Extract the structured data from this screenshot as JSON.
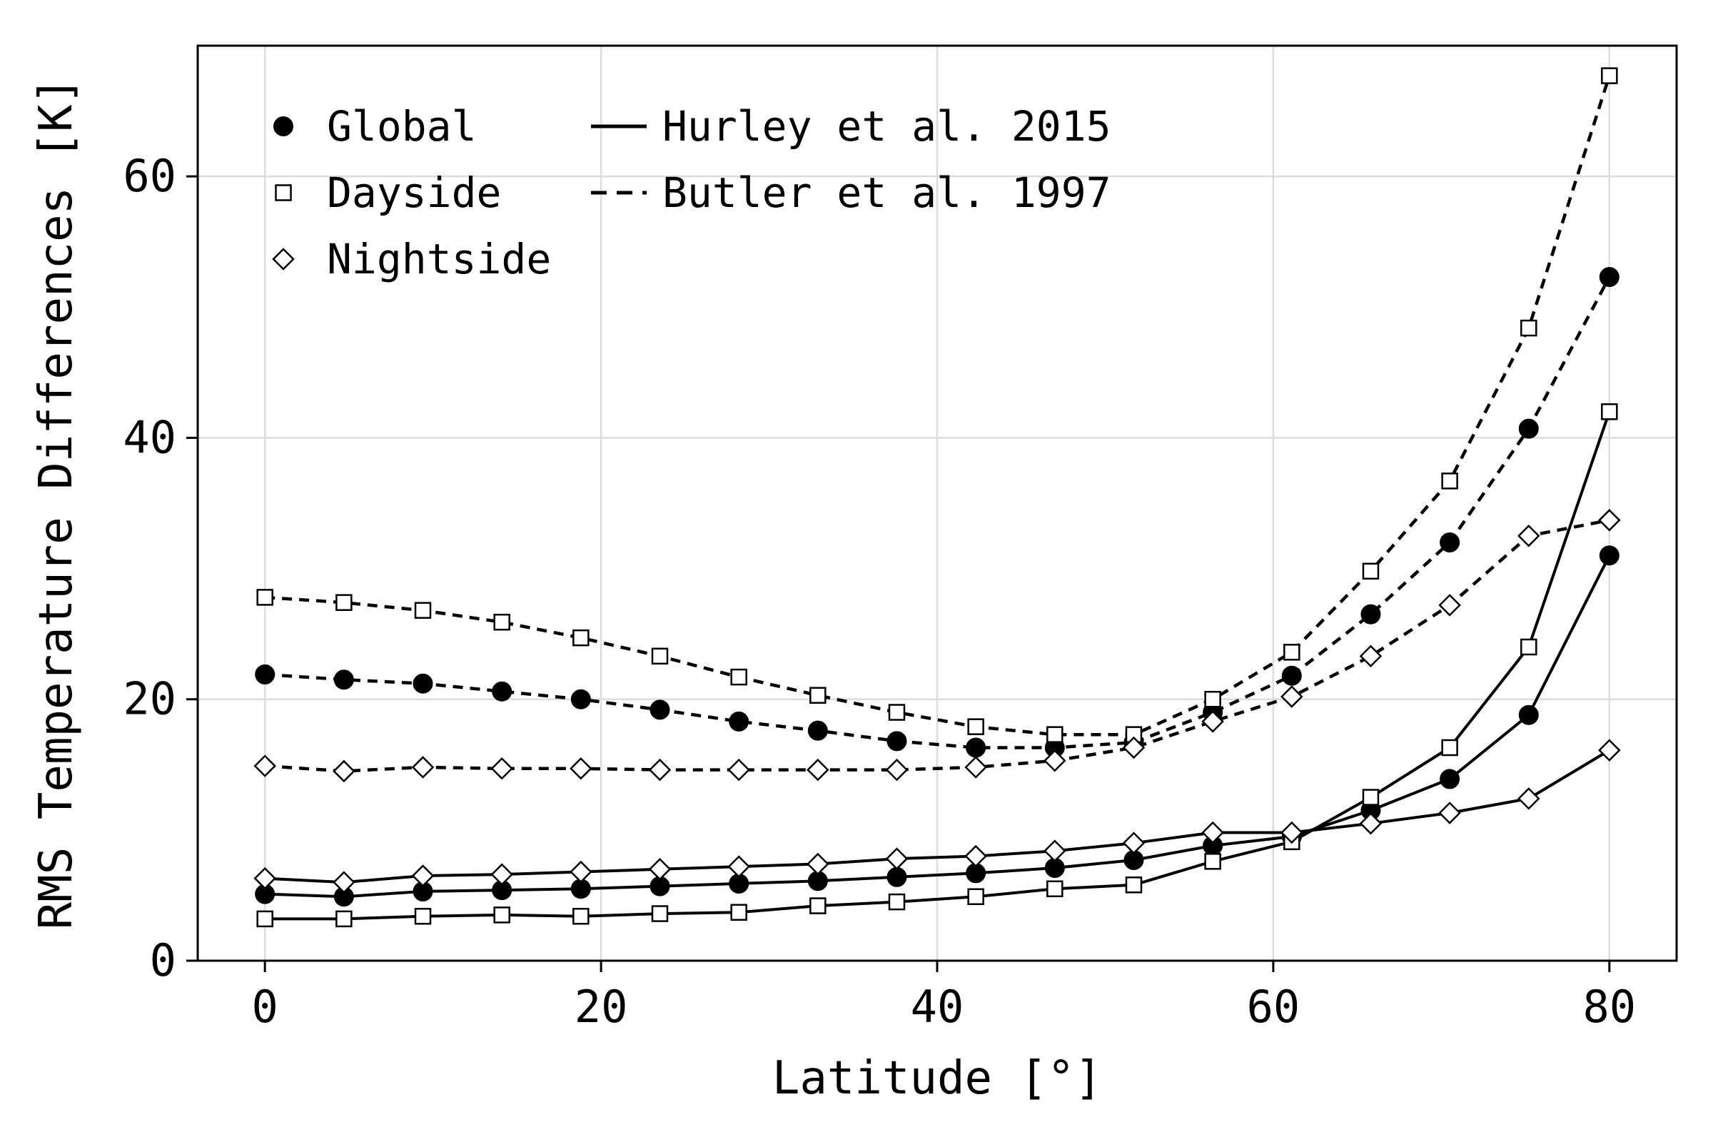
{
  "chart_data": {
    "type": "line",
    "title": "",
    "xlabel": "Latitude [°]",
    "ylabel": "RMS Temperature Differences [K]",
    "xlim": [
      -4,
      84
    ],
    "ylim": [
      0,
      70
    ],
    "xticks": [
      0,
      20,
      40,
      60,
      80
    ],
    "yticks": [
      0,
      20,
      40,
      60
    ],
    "grid": true,
    "legend_position": "top-left",
    "legend_markers": [
      {
        "label": "Global",
        "marker": "filled-circle"
      },
      {
        "label": "Dayside",
        "marker": "open-square"
      },
      {
        "label": "Nightside",
        "marker": "open-diamond"
      }
    ],
    "legend_lines": [
      {
        "label": "Hurley et al. 2015",
        "style": "solid"
      },
      {
        "label": "Butler et al. 1997",
        "style": "dashed"
      }
    ],
    "x": [
      0,
      4.7,
      9.4,
      14.1,
      18.8,
      23.5,
      28.2,
      32.9,
      37.6,
      42.3,
      47.0,
      51.7,
      56.4,
      61.1,
      65.8,
      70.5,
      75.2,
      80
    ],
    "series": [
      {
        "name": "Global",
        "model": "Hurley et al. 2015",
        "marker": "filled-circle",
        "style": "solid",
        "values": [
          5.1,
          4.9,
          5.3,
          5.4,
          5.5,
          5.7,
          5.9,
          6.1,
          6.4,
          6.7,
          7.1,
          7.7,
          8.8,
          9.5,
          11.5,
          13.9,
          18.8,
          31.0
        ]
      },
      {
        "name": "Dayside",
        "model": "Hurley et al. 2015",
        "marker": "open-square",
        "style": "solid",
        "values": [
          3.2,
          3.2,
          3.4,
          3.5,
          3.4,
          3.6,
          3.7,
          4.2,
          4.5,
          4.9,
          5.5,
          5.8,
          7.6,
          9.1,
          12.5,
          16.3,
          24.0,
          42.0
        ]
      },
      {
        "name": "Nightside",
        "model": "Hurley et al. 2015",
        "marker": "open-diamond",
        "style": "solid",
        "values": [
          6.3,
          6.0,
          6.5,
          6.6,
          6.8,
          7.0,
          7.2,
          7.4,
          7.8,
          8.0,
          8.4,
          9.0,
          9.8,
          9.8,
          10.5,
          11.3,
          12.4,
          16.1
        ]
      },
      {
        "name": "Global",
        "model": "Butler et al. 1997",
        "marker": "filled-circle",
        "style": "dashed",
        "values": [
          21.9,
          21.5,
          21.2,
          20.6,
          20.0,
          19.2,
          18.3,
          17.6,
          16.8,
          16.3,
          16.3,
          16.7,
          19.0,
          21.8,
          26.5,
          32.0,
          40.7,
          52.3
        ]
      },
      {
        "name": "Dayside",
        "model": "Butler et al. 1997",
        "marker": "open-square",
        "style": "dashed",
        "values": [
          27.8,
          27.4,
          26.8,
          25.9,
          24.7,
          23.3,
          21.7,
          20.3,
          19.0,
          17.9,
          17.3,
          17.3,
          20.0,
          23.6,
          29.8,
          36.7,
          48.4,
          67.7
        ]
      },
      {
        "name": "Nightside",
        "model": "Butler et al. 1997",
        "marker": "open-diamond",
        "style": "dashed",
        "values": [
          14.9,
          14.5,
          14.8,
          14.7,
          14.7,
          14.6,
          14.6,
          14.6,
          14.6,
          14.8,
          15.3,
          16.3,
          18.3,
          20.2,
          23.3,
          27.2,
          32.5,
          33.7
        ]
      }
    ]
  }
}
